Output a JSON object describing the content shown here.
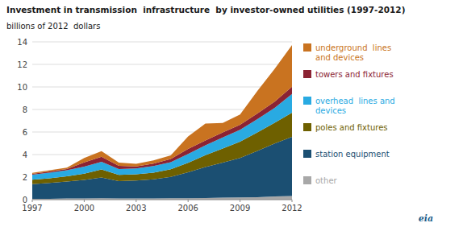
{
  "chart_data": {
    "type": "area",
    "stacked": true,
    "title": "Investment in transmission  infrastructure  by investor-owned utilities (1997-2012)",
    "subtitle": "billions of 2012  dollars",
    "annotations": [
      "eia"
    ],
    "x": [
      1997,
      1998,
      1999,
      2000,
      2001,
      2002,
      2003,
      2004,
      2005,
      2006,
      2007,
      2008,
      2009,
      2010,
      2011,
      2012
    ],
    "series": [
      {
        "name": "other",
        "color": "#a8a8a8",
        "values": [
          0.08,
          0.08,
          0.1,
          0.1,
          0.12,
          0.1,
          0.1,
          0.1,
          0.12,
          0.12,
          0.15,
          0.18,
          0.2,
          0.22,
          0.28,
          0.32
        ]
      },
      {
        "name": "station equipment",
        "color": "#1b4f72",
        "values": [
          1.3,
          1.4,
          1.5,
          1.65,
          1.85,
          1.55,
          1.6,
          1.7,
          1.9,
          2.3,
          2.75,
          3.1,
          3.5,
          4.1,
          4.7,
          5.25
        ]
      },
      {
        "name": "poles and fixtures",
        "color": "#6e6000",
        "values": [
          0.38,
          0.42,
          0.48,
          0.55,
          0.7,
          0.55,
          0.55,
          0.6,
          0.68,
          0.85,
          1.05,
          1.25,
          1.45,
          1.65,
          1.85,
          2.15
        ]
      },
      {
        "name": "overhead  lines and\ndevices",
        "color": "#29aae2",
        "values": [
          0.45,
          0.5,
          0.52,
          0.62,
          0.68,
          0.52,
          0.52,
          0.58,
          0.62,
          0.78,
          0.88,
          0.98,
          1.05,
          1.18,
          1.32,
          1.65
        ]
      },
      {
        "name": "towers and fixtures",
        "color": "#8b2333",
        "values": [
          0.08,
          0.1,
          0.12,
          0.38,
          0.45,
          0.28,
          0.18,
          0.22,
          0.28,
          0.45,
          0.42,
          0.45,
          0.45,
          0.5,
          0.55,
          0.65
        ]
      },
      {
        "name": "underground  lines\nand devices",
        "color": "#c97320",
        "values": [
          0.08,
          0.1,
          0.12,
          0.4,
          0.5,
          0.28,
          0.22,
          0.28,
          0.32,
          1.1,
          1.5,
          0.85,
          0.9,
          2.0,
          2.9,
          3.7
        ]
      }
    ],
    "xlim": [
      1997,
      2012
    ],
    "xticks": [
      1997,
      2000,
      2003,
      2006,
      2009,
      2012
    ],
    "ylim": [
      0,
      14
    ],
    "yticks": [
      0,
      2,
      4,
      6,
      8,
      10,
      12,
      14
    ],
    "grid": true,
    "legend": "right"
  }
}
